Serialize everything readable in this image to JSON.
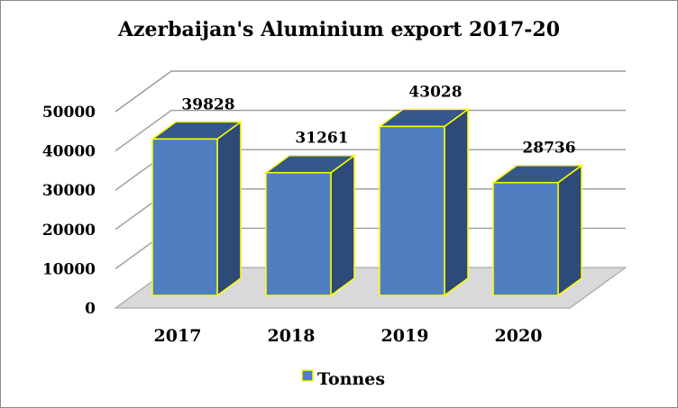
{
  "chart_data": {
    "type": "bar",
    "title": "Azerbaijan's Aluminium export 2017-20",
    "categories": [
      "2017",
      "2018",
      "2019",
      "2020"
    ],
    "series": [
      {
        "name": "Tonnes",
        "values": [
          39828,
          31261,
          43028,
          28736
        ]
      }
    ],
    "data_labels": [
      "39828",
      "31261",
      "43028",
      "28736"
    ],
    "y_ticks": [
      "0",
      "10000",
      "20000",
      "30000",
      "40000",
      "50000"
    ],
    "ylim": [
      0,
      50000
    ],
    "grid": true,
    "legend_position": "bottom",
    "colors": {
      "bar_front": "#4f7fc1",
      "bar_side": "#2e4a78",
      "bar_top": "#35578c",
      "bar_edge": "#ffff00",
      "grid": "#9a9a9a",
      "floor": "#d9d9d9"
    }
  }
}
